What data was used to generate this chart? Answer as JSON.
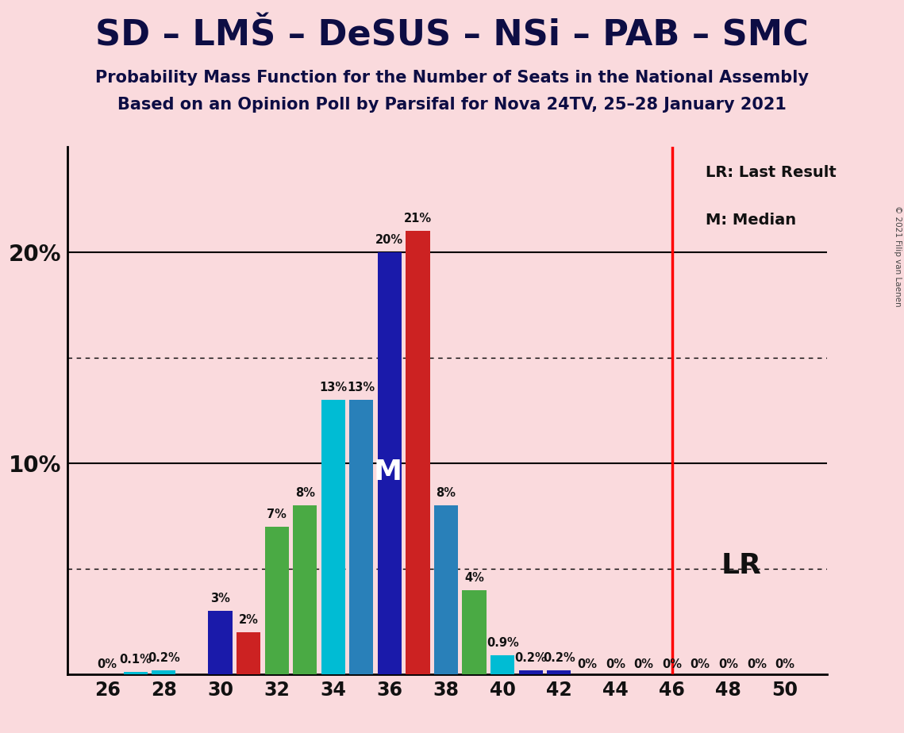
{
  "background_color": "#fadadd",
  "title_main": "SD – LMŠ – DeSUS – NSi – PAB – SMC",
  "subtitle1": "Probability Mass Function for the Number of Seats in the National Assembly",
  "subtitle2": "Based on an Opinion Poll by Parsifal for Nova 24TV, 25–28 January 2021",
  "copyright": "© 2021 Filip van Laenen",
  "seats": [
    26,
    27,
    28,
    29,
    30,
    31,
    32,
    33,
    34,
    35,
    36,
    37,
    38,
    39,
    40,
    41,
    42,
    43,
    44,
    45,
    46,
    47,
    48,
    49,
    50
  ],
  "probabilities": [
    0.0,
    0.001,
    0.002,
    0.0,
    0.03,
    0.02,
    0.07,
    0.08,
    0.13,
    0.13,
    0.2,
    0.21,
    0.08,
    0.04,
    0.009,
    0.002,
    0.002,
    0.0,
    0.0,
    0.0,
    0.0,
    0.0,
    0.0,
    0.0,
    0.0
  ],
  "bar_colors": [
    "#1a1aaa",
    "#00bcd4",
    "#00bcd4",
    "#cc2222",
    "#1a1aaa",
    "#cc2222",
    "#4aaa44",
    "#4aaa44",
    "#00bcd4",
    "#2980b9",
    "#1a1aaa",
    "#cc2222",
    "#2980b9",
    "#4aaa44",
    "#00bcd4",
    "#1a1aaa",
    "#1a1aaa",
    "#1a1aaa",
    "#1a1aaa",
    "#1a1aaa",
    "#1a1aaa",
    "#1a1aaa",
    "#1a1aaa",
    "#1a1aaa",
    "#1a1aaa"
  ],
  "bar_labels": [
    "0%",
    "0.1%",
    "0.2%",
    "",
    "3%",
    "2%",
    "7%",
    "8%",
    "13%",
    "13%",
    "20%",
    "21%",
    "8%",
    "4%",
    "0.9%",
    "0.2%",
    "0.2%",
    "0%",
    "0%",
    "0%",
    "0%",
    "0%",
    "0%",
    "0%",
    "0%"
  ],
  "median_seat": 36,
  "lr_seat": 46,
  "lr_label": "LR: Last Result",
  "median_label": "M: Median",
  "lr_bottom_text": "LR",
  "ylim": 0.25,
  "solid_hlines": [
    0.1,
    0.2
  ],
  "dotted_hlines": [
    0.05,
    0.15
  ],
  "xlim_left": 24.6,
  "xlim_right": 51.5,
  "xticks": [
    26,
    28,
    30,
    32,
    34,
    36,
    38,
    40,
    42,
    44,
    46,
    48,
    50
  ],
  "bar_width": 0.85
}
